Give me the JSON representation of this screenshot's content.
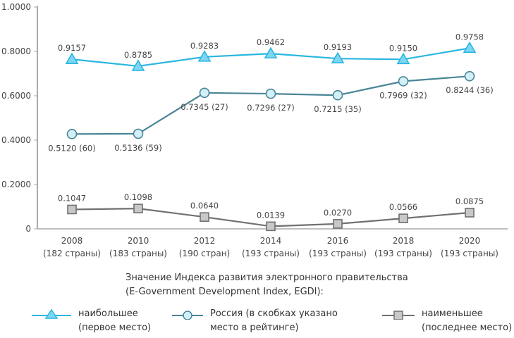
{
  "chart_data": {
    "type": "line",
    "categories": [
      "2008",
      "2010",
      "2012",
      "2014",
      "2016",
      "2018",
      "2020"
    ],
    "category_sublabels": [
      "(182 страны)",
      "(183 страны)",
      "(190 стран)",
      "(193 страны)",
      "(193 страны)",
      "(193 страны)",
      "(193 страны)"
    ],
    "y_ticks": [
      "0",
      "0.2000",
      "0.4000",
      "0.6000",
      "0.8000",
      "1.0000"
    ],
    "ylim": [
      0,
      1
    ],
    "series": [
      {
        "name": "наибольшее\n(первое место)",
        "marker": "triangle",
        "color": "#29b6e0",
        "fill": "#7fd6f2",
        "values": [
          0.9157,
          0.8785,
          0.9283,
          0.9462,
          0.9193,
          0.915,
          0.9758
        ],
        "labels": [
          "0.9157",
          "0.8785",
          "0.9283",
          "0.9462",
          "0.9193",
          "0.9150",
          "0.9758"
        ]
      },
      {
        "name": "Россия (в скобках указано\nместо в рейтинге)",
        "marker": "circle",
        "color": "#4a8596",
        "fill": "#d3f0f8",
        "values": [
          0.512,
          0.5136,
          0.7345,
          0.7296,
          0.7215,
          0.7969,
          0.8244
        ],
        "labels": [
          "0.5120 (60)",
          "0.5136 (59)",
          "0.7345 (27)",
          "0.7296 (27)",
          "0.7215 (35)",
          "0.7969 (32)",
          "0.8244 (36)"
        ]
      },
      {
        "name": "наименьшее\n(последнее место)",
        "marker": "square",
        "color": "#707070",
        "fill": "#c8c8c8",
        "values": [
          0.1047,
          0.1098,
          0.064,
          0.0139,
          0.027,
          0.0566,
          0.0875
        ],
        "labels": [
          "0.1047",
          "0.1098",
          "0.0640",
          "0.0139",
          "0.0270",
          "0.0566",
          "0.0875"
        ]
      }
    ],
    "legend_title": "Значение Индекса развития электронного правительства",
    "legend_title_2": "(E-Government Development Index, EGDI):",
    "legend_position": "bottom",
    "grid": false
  }
}
